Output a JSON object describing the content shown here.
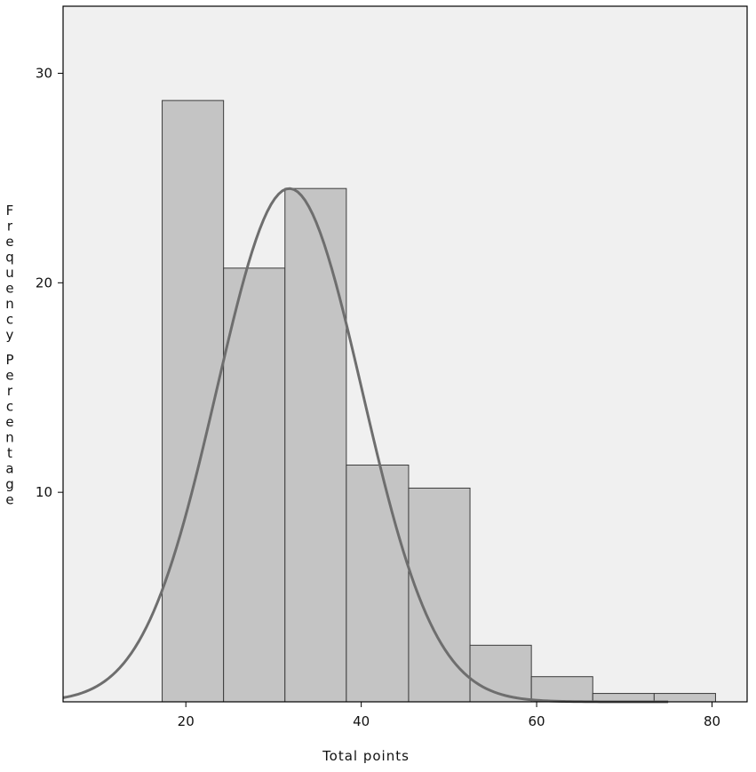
{
  "chart_data": {
    "type": "bar",
    "title": "",
    "xlabel": "Total points",
    "ylabel": "Frequency Percentage",
    "xlim": [
      6.0,
      84.0
    ],
    "ylim": [
      0,
      33.2
    ],
    "x_ticks": [
      20,
      40,
      60,
      80
    ],
    "y_ticks": [
      10,
      20,
      30
    ],
    "grid": false,
    "legend": "none",
    "bins": [
      {
        "start": 17.3,
        "end": 24.3,
        "value": 28.7
      },
      {
        "start": 24.3,
        "end": 31.3,
        "value": 20.7
      },
      {
        "start": 31.3,
        "end": 38.3,
        "value": 24.5
      },
      {
        "start": 38.3,
        "end": 45.4,
        "value": 11.3
      },
      {
        "start": 45.4,
        "end": 52.4,
        "value": 10.2
      },
      {
        "start": 52.4,
        "end": 59.4,
        "value": 2.7
      },
      {
        "start": 59.4,
        "end": 66.4,
        "value": 1.2
      },
      {
        "start": 66.4,
        "end": 73.4,
        "value": 0.4
      },
      {
        "start": 73.4,
        "end": 80.4,
        "value": 0.4
      }
    ],
    "curve": {
      "type": "normal",
      "mean": 31.8,
      "sd": 8.3,
      "peak": 24.5,
      "x_range": [
        6.0,
        75.0
      ]
    },
    "colors": {
      "plot_background": "#f0f0f0",
      "bar_fill": "#c4c4c4",
      "bar_stroke": "#3c3c3c",
      "curve": "#6e6e6e",
      "axis": "#000000"
    }
  }
}
